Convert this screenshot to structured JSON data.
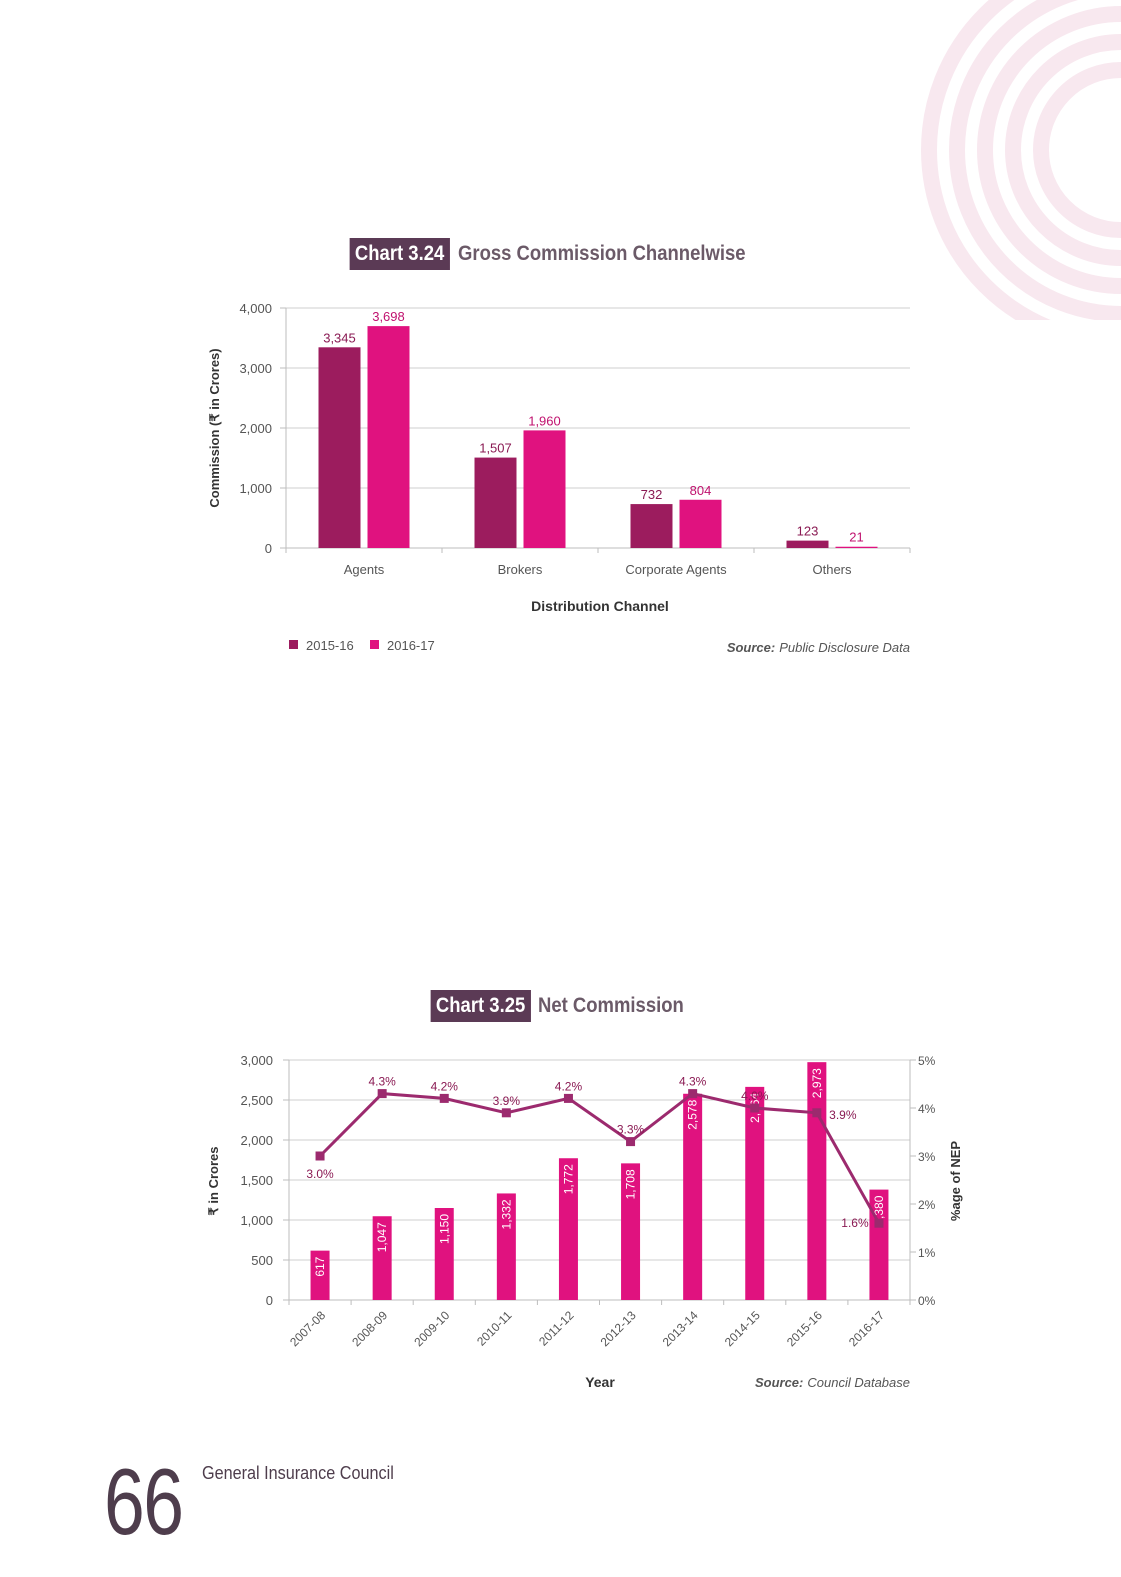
{
  "charts": [
    {
      "number": "Chart 3.24",
      "title": "Gross Commission Channelwise",
      "source_label": "Source:",
      "source_text": "Public Disclosure Data"
    },
    {
      "number": "Chart 3.25",
      "title": "Net Commission",
      "source_label": "Source:",
      "source_text": "Council Database"
    }
  ],
  "footer": {
    "page_number": "66",
    "publisher": "General Insurance Council"
  },
  "colors": {
    "dark_magenta": "#9c1c5e",
    "magenta": "#e0127f",
    "line": "#9c2a6e",
    "title_box": "#5b3a55",
    "grid": "#cfcfcf"
  },
  "chart_data": [
    {
      "type": "bar",
      "title": "Gross Commission Channelwise",
      "xlabel": "Distribution Channel",
      "ylabel": "Commission (₹ in Crores)",
      "categories": [
        "Agents",
        "Brokers",
        "Corporate Agents",
        "Others"
      ],
      "series": [
        {
          "name": "2015-16",
          "values": [
            3345,
            1507,
            732,
            123
          ],
          "labels": [
            "3,345",
            "1,507",
            "732",
            "123"
          ]
        },
        {
          "name": "2016-17",
          "values": [
            3698,
            1960,
            804,
            21
          ],
          "labels": [
            "3,698",
            "1,960",
            "804",
            "21"
          ]
        }
      ],
      "ylim": [
        0,
        4000
      ],
      "yticks": [
        0,
        1000,
        2000,
        3000,
        4000
      ],
      "ytick_labels": [
        "0",
        "1,000",
        "2,000",
        "3,000",
        "4,000"
      ],
      "grid": true,
      "legend": "bottom-left"
    },
    {
      "type": "bar+line",
      "title": "Net Commission",
      "xlabel": "Year",
      "ylabel": "₹ in Crores",
      "y2label": "%age of NEP",
      "categories": [
        "2007-08",
        "2008-09",
        "2009-10",
        "2010-11",
        "2011-12",
        "2012-13",
        "2013-14",
        "2014-15",
        "2015-16",
        "2016-17"
      ],
      "bars": {
        "values": [
          617,
          1047,
          1150,
          1332,
          1772,
          1708,
          2578,
          2664,
          2973,
          1380
        ],
        "labels": [
          "617",
          "1,047",
          "1,150",
          "1,332",
          "1,772",
          "1,708",
          "2,578",
          "2,664",
          "2,973",
          "1,380"
        ]
      },
      "line": {
        "values": [
          3.0,
          4.3,
          4.2,
          3.9,
          4.2,
          3.3,
          4.3,
          4.0,
          3.9,
          1.6
        ],
        "labels": [
          "3.0%",
          "4.3%",
          "4.2%",
          "3.9%",
          "4.2%",
          "3.3%",
          "4.3%",
          "4.0%",
          "3.9%",
          "1.6%"
        ]
      },
      "ylim": [
        0,
        3000
      ],
      "yticks": [
        0,
        500,
        1000,
        1500,
        2000,
        2500,
        3000
      ],
      "ytick_labels": [
        "0",
        "500",
        "1,000",
        "1,500",
        "2,000",
        "2,500",
        "3,000"
      ],
      "y2lim": [
        0,
        5
      ],
      "y2ticks": [
        0,
        1,
        2,
        3,
        4,
        5
      ],
      "y2tick_labels": [
        "0%",
        "1%",
        "2%",
        "3%",
        "4%",
        "5%"
      ],
      "grid": true
    }
  ]
}
